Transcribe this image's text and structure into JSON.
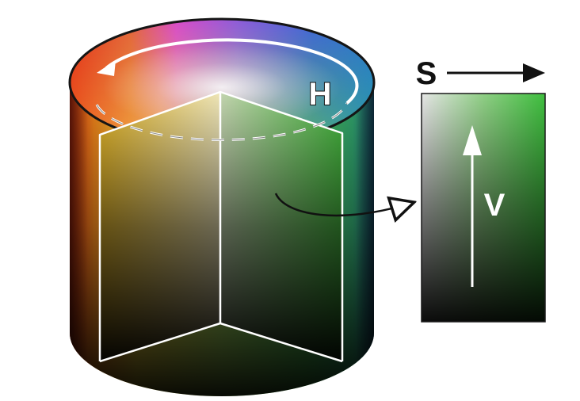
{
  "labels": {
    "hue": "H",
    "saturation": "S",
    "value": "V"
  },
  "colors": {
    "background": "#ffffff",
    "outline": "#ffffff",
    "ink": "#111111",
    "slice_green": "#3fbf3f",
    "slice_dark": "#0c1a0c"
  }
}
